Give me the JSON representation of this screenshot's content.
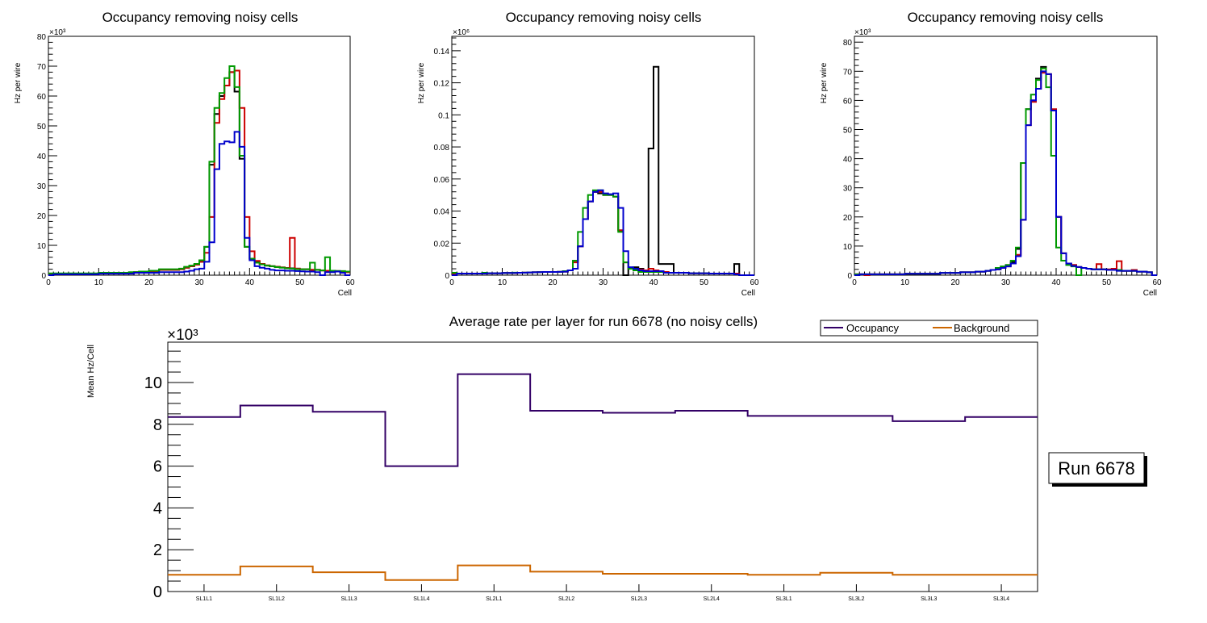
{
  "chart_data": [
    {
      "type": "line",
      "subtype": "step-histogram",
      "title": "Occupancy removing noisy cells",
      "xlabel": "Cell",
      "ylabel": "Hz per wire",
      "y_multiplier_label": "×10³",
      "xlim": [
        0,
        60
      ],
      "ylim": [
        0,
        80
      ],
      "x_ticks": [
        "0",
        "10",
        "20",
        "30",
        "40",
        "50",
        "60"
      ],
      "y_ticks": [
        "0",
        "10",
        "20",
        "30",
        "40",
        "50",
        "60",
        "70",
        "80"
      ],
      "series": [
        {
          "name": "black",
          "color": "#000000",
          "values": [
            0.5,
            0.5,
            0.5,
            0.5,
            0.5,
            0.5,
            0.5,
            0.5,
            0.5,
            0.5,
            0.8,
            0.8,
            0.8,
            0.8,
            0.8,
            0.8,
            0.8,
            1,
            1,
            1,
            1.2,
            1.2,
            1.8,
            1.8,
            1.8,
            1.8,
            2,
            2.5,
            3,
            3.5,
            4.5,
            9.5,
            37,
            54,
            60,
            63.5,
            68,
            61.5,
            39,
            9.5,
            5.5,
            4.5,
            3.8,
            3.2,
            3,
            2.8,
            2.6,
            2.4,
            2.3,
            2.2,
            2,
            2,
            1.8,
            1.8,
            1.6,
            1.5,
            1.5,
            1.4,
            1.2,
            1
          ]
        },
        {
          "name": "red",
          "color": "#cc0000",
          "values": [
            0.5,
            0.5,
            0.5,
            0.5,
            0.5,
            0.5,
            0.5,
            0.5,
            0.5,
            0.5,
            0.8,
            0.8,
            0.8,
            0.8,
            0.8,
            0.8,
            0.8,
            1,
            1,
            1,
            1.2,
            1.2,
            1.8,
            1.8,
            1.8,
            1.8,
            2,
            2.5,
            3,
            3.5,
            4.5,
            7.5,
            19.5,
            51,
            59,
            63.5,
            68,
            68.5,
            56,
            19.5,
            8,
            4.8,
            3.8,
            3.3,
            3,
            2.8,
            2.6,
            2.4,
            12.5,
            2.2,
            2,
            2,
            1.8,
            1.8,
            1.6,
            1.5,
            1.5,
            1.4,
            1.2,
            1
          ]
        },
        {
          "name": "green",
          "color": "#009900",
          "values": [
            0.6,
            0.6,
            0.6,
            0.6,
            0.6,
            0.6,
            0.6,
            0.6,
            0.6,
            0.6,
            0.8,
            0.8,
            0.8,
            0.8,
            0.8,
            0.8,
            1,
            1,
            1.2,
            1.2,
            1.5,
            1.5,
            2,
            2,
            2,
            2,
            2.2,
            2.8,
            3.2,
            3.8,
            5,
            9.5,
            38,
            56,
            61,
            66,
            70,
            63,
            40,
            9.5,
            5.5,
            4.2,
            3.6,
            3.2,
            3,
            2.7,
            2.5,
            2.3,
            2.2,
            2,
            2,
            2,
            4.2,
            1.8,
            1.6,
            6,
            1.5,
            1.4,
            1.4,
            1.2
          ]
        },
        {
          "name": "blue",
          "color": "#0000cc",
          "values": [
            0,
            0.3,
            0.3,
            0.3,
            0.3,
            0.3,
            0.3,
            0.3,
            0.3,
            0.3,
            0.5,
            0.5,
            0.5,
            0.5,
            0.5,
            0.5,
            0.5,
            0.8,
            0.8,
            0.8,
            0.8,
            0.8,
            1,
            1,
            1,
            1,
            1,
            1.2,
            1.5,
            2,
            2.2,
            4.5,
            11,
            35.5,
            44,
            44.8,
            44.5,
            48,
            43,
            12.5,
            5,
            3,
            2.5,
            2.2,
            1.8,
            1.6,
            1.6,
            1.5,
            1.5,
            1.4,
            1.3,
            1.2,
            1.2,
            1,
            0,
            1,
            1,
            1.2,
            0.8,
            0
          ]
        }
      ]
    },
    {
      "type": "line",
      "subtype": "step-histogram",
      "title": "Occupancy removing noisy cells",
      "xlabel": "Cell",
      "ylabel": "Hz per wire",
      "y_multiplier_label": "×10⁶",
      "xlim": [
        0,
        60
      ],
      "ylim": [
        0,
        0.149
      ],
      "x_ticks": [
        "0",
        "10",
        "20",
        "30",
        "40",
        "50",
        "60"
      ],
      "y_ticks": [
        "0",
        "0.02",
        "0.04",
        "0.06",
        "0.08",
        "0.1",
        "0.12",
        "0.14"
      ],
      "series": [
        {
          "name": "black",
          "color": "#000000",
          "values": [
            0.001,
            0.001,
            0.001,
            0.001,
            0.001,
            0.001,
            0.001,
            0.0012,
            0.0012,
            0.0012,
            0.0014,
            0.0014,
            0.0014,
            0.0015,
            0.0016,
            0.0017,
            0.0018,
            0.0019,
            0.002,
            0.002,
            0.002,
            0.0021,
            0.0022,
            0.003,
            0.009,
            0.018,
            0.035,
            0.046,
            0.052,
            0.051,
            0.05,
            0.05,
            0.049,
            0.028,
            0,
            0.004,
            0.005,
            0.004,
            0.003,
            0.079,
            0.13,
            0.007,
            0.007,
            0.007,
            0.0015,
            0.0015,
            0.0015,
            0.0012,
            0.0012,
            0.0012,
            0.0012,
            0.001,
            0.001,
            0.001,
            0.001,
            0.001,
            0.007,
            0,
            0,
            0
          ]
        },
        {
          "name": "red",
          "color": "#cc0000",
          "values": [
            0.001,
            0.001,
            0.001,
            0.001,
            0.001,
            0.001,
            0.001,
            0.0012,
            0.0012,
            0.0012,
            0.0014,
            0.0014,
            0.0014,
            0.0015,
            0.0016,
            0.0017,
            0.0018,
            0.0019,
            0.002,
            0.002,
            0.002,
            0.0021,
            0.0022,
            0.003,
            0.008,
            0.018,
            0.035,
            0.046,
            0.052,
            0.052,
            0.05,
            0.05,
            0.049,
            0.028,
            0.008,
            0.004,
            0.004,
            0.0035,
            0.003,
            0.004,
            0.003,
            0.0025,
            0.002,
            0.0015,
            0.0015,
            0.0015,
            0.0015,
            0.0012,
            0.0012,
            0.0012,
            0.0012,
            0.001,
            0.001,
            0.001,
            0.001,
            0.001,
            0.001,
            0,
            0,
            0
          ]
        },
        {
          "name": "green",
          "color": "#009900",
          "values": [
            0.0015,
            0.001,
            0.001,
            0.001,
            0.001,
            0.001,
            0.0015,
            0.0012,
            0.0012,
            0.0012,
            0.0014,
            0.0014,
            0.0016,
            0.0015,
            0.0016,
            0.0017,
            0.0018,
            0.0019,
            0.002,
            0.002,
            0.002,
            0.0021,
            0.0025,
            0.003,
            0.009,
            0.027,
            0.042,
            0.05,
            0.053,
            0.053,
            0.05,
            0.05,
            0.049,
            0.027,
            0.008,
            0.004,
            0.003,
            0.002,
            0.002,
            0.002,
            0.002,
            0.002,
            0.0015,
            0.0015,
            0.0015,
            0.0015,
            0.0015,
            0.0012,
            0.0012,
            0.0012,
            0.0012,
            0.001,
            0.001,
            0.001,
            0.001,
            0.001,
            0.0005,
            0,
            0,
            0
          ]
        },
        {
          "name": "blue",
          "color": "#0000cc",
          "values": [
            0,
            0.001,
            0.001,
            0.001,
            0.001,
            0.001,
            0.001,
            0.0012,
            0.0012,
            0.0012,
            0.0014,
            0.0014,
            0.0014,
            0.0015,
            0.0016,
            0.0017,
            0.0018,
            0.0019,
            0.002,
            0.002,
            0.002,
            0.0021,
            0.0022,
            0.003,
            0.004,
            0.018,
            0.035,
            0.046,
            0.052,
            0.053,
            0.051,
            0.0505,
            0.051,
            0.042,
            0.015,
            0.005,
            0.004,
            0.003,
            0.0025,
            0.0025,
            0.0025,
            0.0025,
            0.0015,
            0.0015,
            0.0015,
            0.0015,
            0.0015,
            0.0012,
            0.0012,
            0.0012,
            0.0012,
            0.001,
            0.001,
            0.001,
            0.001,
            0.001,
            0.0005,
            0,
            0,
            0
          ]
        }
      ]
    },
    {
      "type": "line",
      "subtype": "step-histogram",
      "title": "Occupancy removing noisy cells",
      "xlabel": "Cell",
      "ylabel": "Hz per wire",
      "y_multiplier_label": "×10³",
      "xlim": [
        0,
        60
      ],
      "ylim": [
        0,
        82
      ],
      "x_ticks": [
        "0",
        "10",
        "20",
        "30",
        "40",
        "50",
        "60"
      ],
      "y_ticks": [
        "0",
        "10",
        "20",
        "30",
        "40",
        "50",
        "60",
        "70",
        "80"
      ],
      "series": [
        {
          "name": "black",
          "color": "#000000",
          "values": [
            0.3,
            0.3,
            0.3,
            0.3,
            0.3,
            0.3,
            0.3,
            0.3,
            0.3,
            0.3,
            0.5,
            0.5,
            0.5,
            0.5,
            0.5,
            0.5,
            0.5,
            0.8,
            0.8,
            0.8,
            0.8,
            1,
            1,
            1,
            1.2,
            1.2,
            1.5,
            1.8,
            2,
            2.5,
            3.5,
            4.5,
            9,
            38.5,
            57,
            60,
            67.5,
            71.5,
            69,
            56.5,
            20,
            7.5,
            4,
            3.5,
            2.8,
            2.5,
            2.2,
            2,
            2,
            2,
            1.8,
            1.8,
            1.8,
            1.5,
            1.5,
            1.5,
            1.2,
            1.2,
            1,
            0
          ]
        },
        {
          "name": "red",
          "color": "#cc0000",
          "values": [
            0.3,
            0.3,
            0,
            0.3,
            0.3,
            0.3,
            0.3,
            0.3,
            0.3,
            0.3,
            0.5,
            0.5,
            0.5,
            0.5,
            0.5,
            0.5,
            0.5,
            0.8,
            0.8,
            0.8,
            0.8,
            1,
            1,
            1,
            1.2,
            1.2,
            1.5,
            1.8,
            2,
            2.5,
            3,
            4,
            7,
            19,
            51.5,
            59.5,
            64,
            69.5,
            69,
            57,
            20,
            7.5,
            4,
            3.5,
            2.8,
            2.5,
            2.2,
            2,
            3.8,
            2,
            2,
            2.2,
            4.8,
            1.5,
            1.5,
            1.8,
            1.2,
            1.2,
            1,
            0
          ]
        },
        {
          "name": "green",
          "color": "#009900",
          "values": [
            0.3,
            0.3,
            0.3,
            0.3,
            0.3,
            0.3,
            0.3,
            0.3,
            0.3,
            0.3,
            0.5,
            0.5,
            0.5,
            0.5,
            0.5,
            0.5,
            0.5,
            0.8,
            0.8,
            0.8,
            0.8,
            1,
            1,
            1,
            1.2,
            1.2,
            1.5,
            1.8,
            2.5,
            3,
            3.5,
            5,
            9.5,
            38.5,
            57,
            62,
            67,
            71,
            64.5,
            41,
            9.5,
            5,
            3.5,
            3,
            0,
            2.5,
            2.2,
            2,
            2,
            2,
            1.8,
            1.8,
            1.8,
            1.5,
            1.5,
            1.5,
            1.2,
            1.2,
            1,
            0
          ]
        },
        {
          "name": "blue",
          "color": "#0000cc",
          "values": [
            0,
            0.3,
            0.3,
            0.3,
            0.3,
            0.3,
            0.3,
            0.3,
            0.3,
            0.3,
            0.5,
            0.5,
            0.5,
            0.5,
            0.5,
            0.5,
            0.5,
            0.8,
            0.8,
            0.8,
            0.8,
            1,
            1,
            1,
            1.2,
            1.2,
            1.5,
            1.8,
            2,
            2.5,
            3,
            4,
            6.5,
            19,
            51.5,
            60,
            64,
            70,
            69,
            56.5,
            20,
            7.5,
            4,
            3.2,
            2.8,
            2.5,
            2.2,
            2,
            2,
            2,
            1.8,
            1.8,
            1.5,
            1.5,
            1.5,
            1.5,
            1.2,
            1.2,
            1,
            0
          ]
        }
      ]
    },
    {
      "type": "line",
      "subtype": "step",
      "title": "Average rate per layer for run 6678 (no noisy cells)",
      "xlabel": "",
      "ylabel": "Mean Hz/Cell",
      "y_multiplier_label": "×10³",
      "ylim": [
        0,
        11.93
      ],
      "y_ticks": [
        "0",
        "2",
        "4",
        "6",
        "8",
        "10"
      ],
      "categories": [
        "SL1L1",
        "SL1L2",
        "SL1L3",
        "SL1L4",
        "SL2L1",
        "SL2L2",
        "SL2L3",
        "SL2L4",
        "SL3L1",
        "SL3L2",
        "SL3L3",
        "SL3L4"
      ],
      "legend_position": "top-right",
      "series": [
        {
          "name": "Occupancy",
          "color": "#330066",
          "values": [
            8.35,
            8.9,
            8.6,
            6.0,
            10.4,
            8.65,
            8.55,
            8.65,
            8.4,
            8.4,
            8.15,
            8.35
          ]
        },
        {
          "name": "Background",
          "color": "#cc6600",
          "values": [
            0.8,
            1.2,
            0.92,
            0.55,
            1.25,
            0.95,
            0.85,
            0.85,
            0.8,
            0.9,
            0.8,
            0.8
          ]
        }
      ]
    }
  ],
  "run_label": "Run 6678"
}
